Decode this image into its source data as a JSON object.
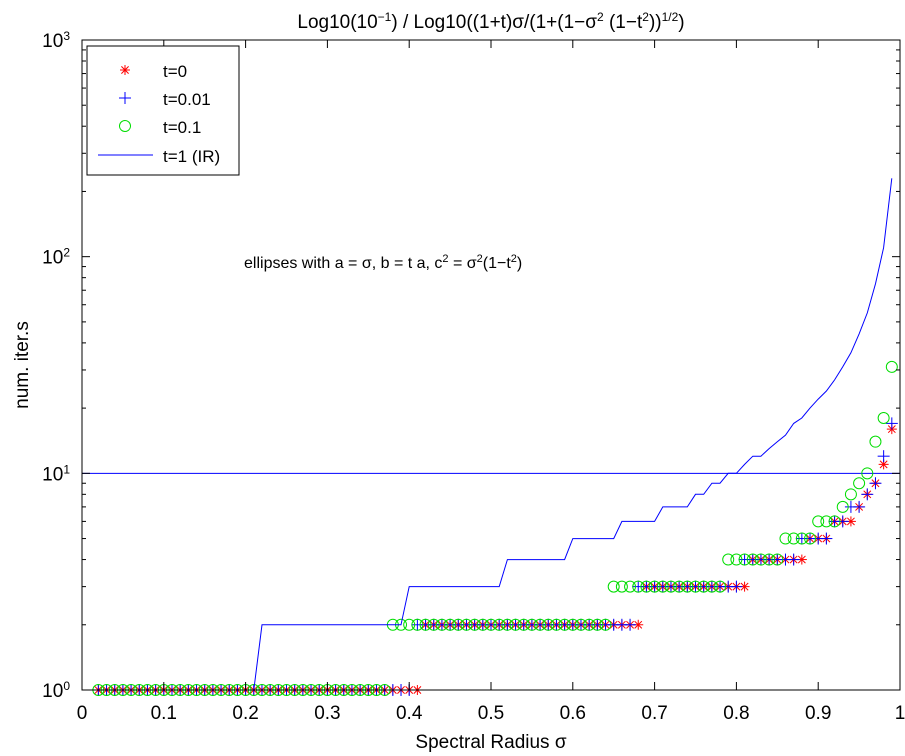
{
  "chart_data": {
    "type": "line",
    "title": {
      "prefix": "Log10(10",
      "sup1": "−1",
      "mid": ") / Log10((1+t)σ/(1+(1−σ",
      "sup2": "2",
      "mid2": " (1−t",
      "sup3": "2",
      "mid3": "))",
      "sup4": "1/2",
      "suffix": ")"
    },
    "xlabel": "Spectral Radius  σ",
    "ylabel": "num. iter.s",
    "xlim": [
      0,
      1
    ],
    "ylim": [
      1,
      1000
    ],
    "yscale": "log",
    "grid": false,
    "legend_position": "top-left",
    "xticks": [
      "0",
      "0.1",
      "0.2",
      "0.3",
      "0.4",
      "0.5",
      "0.6",
      "0.7",
      "0.8",
      "0.9",
      "1"
    ],
    "yticks": [
      {
        "base": "10",
        "exp": "0"
      },
      {
        "base": "10",
        "exp": "1"
      },
      {
        "base": "10",
        "exp": "2"
      },
      {
        "base": "10",
        "exp": "3"
      }
    ],
    "annotation": {
      "p1": "ellipses with a = σ, b = t a, c",
      "s1": "2",
      "p2": " = σ",
      "s2": "2",
      "p3": "(1−t",
      "s3": "2",
      "p4": ")"
    },
    "reference_line": {
      "y": 10,
      "color": "#0000ff"
    },
    "series": [
      {
        "name": "t=0",
        "marker": "*",
        "color": "#ff0000",
        "x_start": 0.02,
        "x_end": 0.99,
        "x_step": 0.01,
        "levels": [
          {
            "y": 1,
            "to": 0.41
          },
          {
            "y": 2,
            "to": 0.68
          },
          {
            "y": 3,
            "to": 0.81
          },
          {
            "y": 4,
            "to": 0.88
          },
          {
            "y": 5,
            "to": 0.91
          },
          {
            "y": 6,
            "to": 0.94
          },
          {
            "y": 7,
            "to": 0.95
          },
          {
            "y": 8,
            "to": 0.96
          },
          {
            "y": 9,
            "to": 0.97
          },
          {
            "y": 11,
            "to": 0.98
          },
          {
            "y": 16,
            "to": 0.99
          }
        ]
      },
      {
        "name": "t=0.01",
        "marker": "+",
        "color": "#0000ff",
        "x_start": 0.02,
        "x_end": 0.99,
        "x_step": 0.01,
        "levels": [
          {
            "y": 1,
            "to": 0.4
          },
          {
            "y": 2,
            "to": 0.67
          },
          {
            "y": 3,
            "to": 0.8
          },
          {
            "y": 4,
            "to": 0.87
          },
          {
            "y": 5,
            "to": 0.91
          },
          {
            "y": 6,
            "to": 0.93
          },
          {
            "y": 7,
            "to": 0.95
          },
          {
            "y": 8,
            "to": 0.96
          },
          {
            "y": 9,
            "to": 0.97
          },
          {
            "y": 12,
            "to": 0.98
          },
          {
            "y": 17,
            "to": 0.99
          }
        ]
      },
      {
        "name": "t=0.1",
        "marker": "o",
        "color": "#00dd00",
        "x_start": 0.02,
        "x_end": 0.99,
        "x_step": 0.01,
        "levels": [
          {
            "y": 1,
            "to": 0.37
          },
          {
            "y": 2,
            "to": 0.64
          },
          {
            "y": 3,
            "to": 0.78
          },
          {
            "y": 4,
            "to": 0.85
          },
          {
            "y": 5,
            "to": 0.89
          },
          {
            "y": 6,
            "to": 0.92
          },
          {
            "y": 7,
            "to": 0.93
          },
          {
            "y": 8,
            "to": 0.94
          },
          {
            "y": 9,
            "to": 0.95
          },
          {
            "y": 10,
            "to": 0.96
          },
          {
            "y": 11,
            "to": 0.96
          },
          {
            "y": 14,
            "to": 0.97
          },
          {
            "y": 18,
            "to": 0.98
          },
          {
            "y": 31,
            "to": 0.99
          }
        ]
      },
      {
        "name": "t=1 (IR)",
        "marker": "line",
        "color": "#0000ff",
        "x": [
          0.02,
          0.21,
          0.22,
          0.39,
          0.4,
          0.51,
          0.52,
          0.59,
          0.6,
          0.65,
          0.66,
          0.7,
          0.71,
          0.74,
          0.75,
          0.76,
          0.77,
          0.78,
          0.79,
          0.8,
          0.81,
          0.82,
          0.83,
          0.84,
          0.85,
          0.86,
          0.87,
          0.88,
          0.89,
          0.9,
          0.91,
          0.92,
          0.93,
          0.94,
          0.95,
          0.96,
          0.97,
          0.98,
          0.99
        ],
        "y": [
          1,
          1,
          2,
          2,
          3,
          3,
          4,
          4,
          5,
          5,
          6,
          6,
          7,
          7,
          8,
          8,
          9,
          9,
          10,
          10,
          11,
          12,
          12,
          13,
          14,
          15,
          17,
          18,
          20,
          22,
          24,
          27,
          31,
          36,
          44,
          55,
          75,
          110,
          230
        ]
      }
    ]
  }
}
